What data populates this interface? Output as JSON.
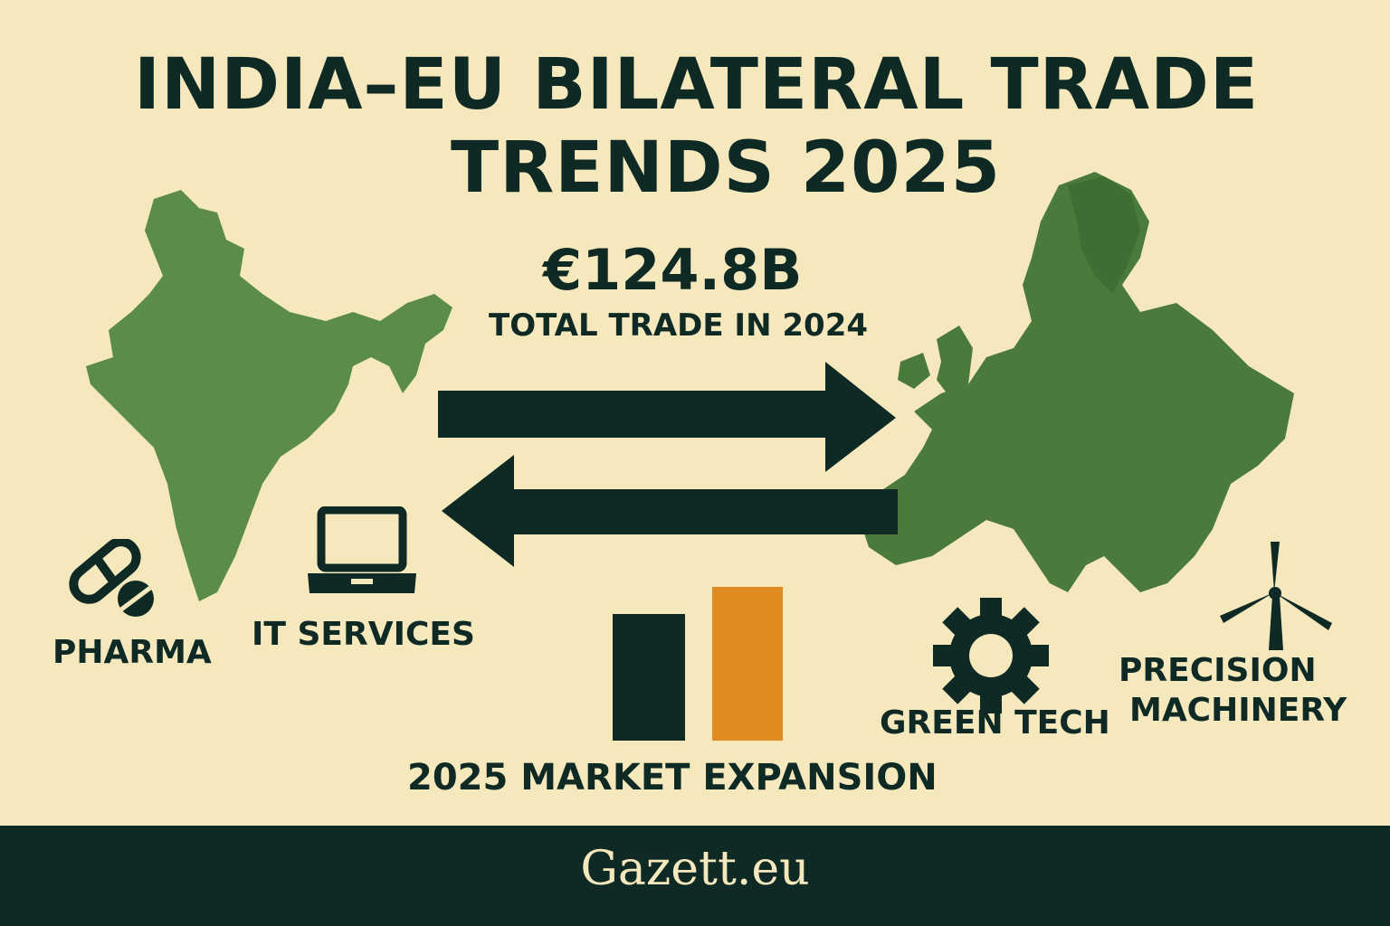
{
  "title": {
    "line1": "INDIA–EU BILATERAL TRADE",
    "line2": "TRENDS 2025"
  },
  "trade_total": {
    "value": "€124.8B",
    "caption": "TOTAL TRADE IN 2024"
  },
  "sectors": {
    "pharma": "PHARMA",
    "it_services": "IT SERVICES",
    "green_tech": "GREEN TECH",
    "precision_machinery_line1": "PRECISION",
    "precision_machinery_line2": "MACHINERY"
  },
  "market": {
    "caption": "2025 MARKET EXPANSION"
  },
  "footer": {
    "brand": "Gazett.eu"
  },
  "colors": {
    "background": "#f6e8bd",
    "dark": "#0f2a24",
    "map_green": "#5b8c48",
    "europe_green": "#4a7a3c",
    "orange": "#e08a22"
  },
  "icons": [
    "india-map-icon",
    "europe-map-icon",
    "pill-icon",
    "laptop-icon",
    "gear-icon",
    "wind-turbine-icon",
    "arrow-right-icon",
    "arrow-left-icon",
    "bar-chart-icon"
  ]
}
